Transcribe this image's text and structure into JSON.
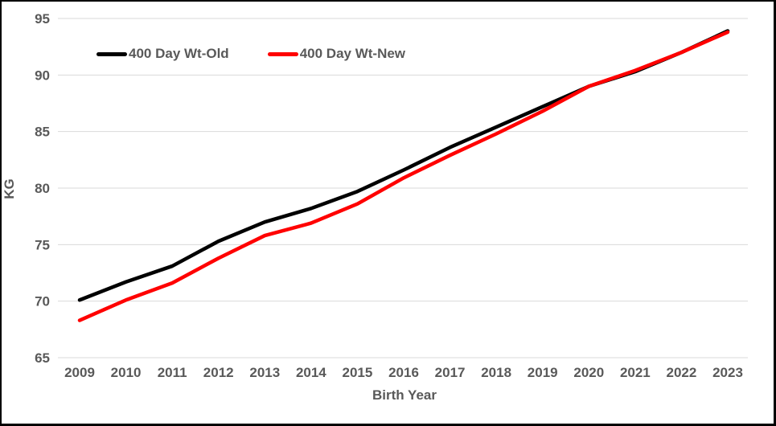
{
  "axes": {
    "y_label": "KG",
    "x_label": "Birth Year"
  },
  "legend": {
    "items": [
      {
        "label": "400 Day Wt-Old",
        "color": "#000000"
      },
      {
        "label": "400 Day Wt-New",
        "color": "#FF0000"
      }
    ]
  },
  "chart_data": {
    "type": "line",
    "title": "",
    "xlabel": "Birth Year",
    "ylabel": "KG",
    "categories": [
      "2009",
      "2010",
      "2011",
      "2012",
      "2013",
      "2014",
      "2015",
      "2016",
      "2017",
      "2018",
      "2019",
      "2020",
      "2021",
      "2022",
      "2023"
    ],
    "series": [
      {
        "name": "400 Day Wt-Old",
        "color": "#000000",
        "values": [
          70.1,
          71.7,
          73.1,
          75.3,
          77.0,
          78.2,
          79.7,
          81.6,
          83.6,
          85.4,
          87.2,
          89.0,
          90.3,
          92.0,
          93.9
        ]
      },
      {
        "name": "400 Day Wt-New",
        "color": "#FF0000",
        "values": [
          68.3,
          70.1,
          71.6,
          73.8,
          75.8,
          76.9,
          78.6,
          80.9,
          82.9,
          84.8,
          86.8,
          89.0,
          90.4,
          92.0,
          93.8
        ]
      }
    ],
    "ylim": [
      65,
      95
    ],
    "y_ticks": [
      95,
      90,
      85,
      80,
      75,
      70,
      65
    ],
    "grid": "horizontal",
    "legend_position": "top-left-inside"
  },
  "style": {
    "grid_color": "#D9D9D9",
    "label_color": "#595959",
    "background": "#FFFFFF",
    "border_color": "#000000"
  }
}
